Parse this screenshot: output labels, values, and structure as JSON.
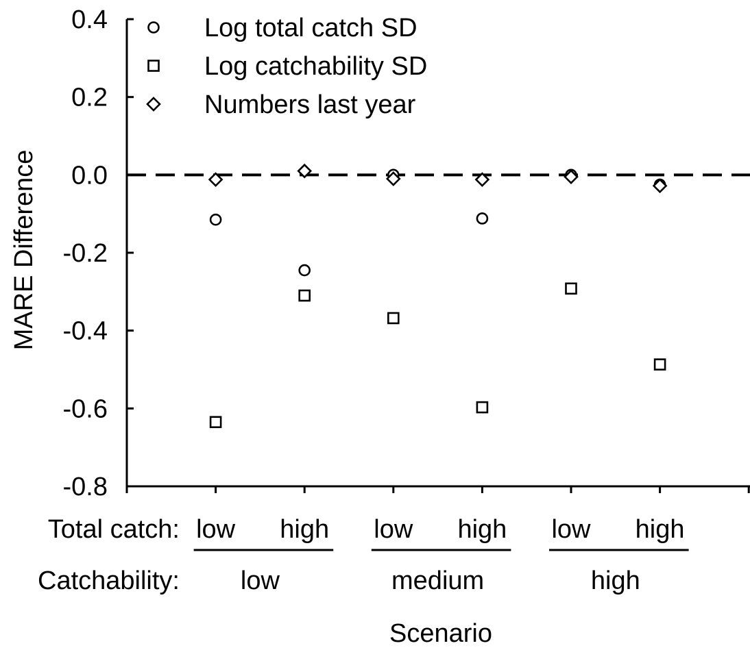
{
  "chart_data": {
    "type": "scatter",
    "title": "",
    "xlabel": "Scenario",
    "ylabel": "MARE Difference",
    "ylim": [
      -0.8,
      0.4
    ],
    "yticks": [
      0.4,
      0.2,
      0.0,
      -0.2,
      -0.4,
      -0.6,
      -0.8
    ],
    "ytick_labels": [
      "0.4",
      "0.2",
      "0.0",
      "-0.2",
      "-0.4",
      "-0.6",
      "-0.8"
    ],
    "reference_line": {
      "y": 0.0,
      "style": "dashed"
    },
    "grid": false,
    "legend_position": "top-left",
    "x_group_rows": [
      {
        "label": "Total catch:",
        "values": [
          "low",
          "high",
          "low",
          "high",
          "low",
          "high"
        ]
      },
      {
        "label": "Catchability:",
        "values": [
          "low",
          "medium",
          "high"
        ]
      }
    ],
    "series": [
      {
        "name": "Log total catch SD",
        "marker": "circle",
        "values": [
          -0.115,
          -0.245,
          0.0,
          -0.112,
          0.0,
          -0.025
        ]
      },
      {
        "name": "Log catchability SD",
        "marker": "square",
        "values": [
          -0.635,
          -0.31,
          -0.368,
          -0.597,
          -0.292,
          -0.487
        ]
      },
      {
        "name": "Numbers last year",
        "marker": "diamond",
        "values": [
          -0.012,
          0.01,
          -0.01,
          -0.012,
          -0.005,
          -0.028
        ]
      }
    ]
  }
}
